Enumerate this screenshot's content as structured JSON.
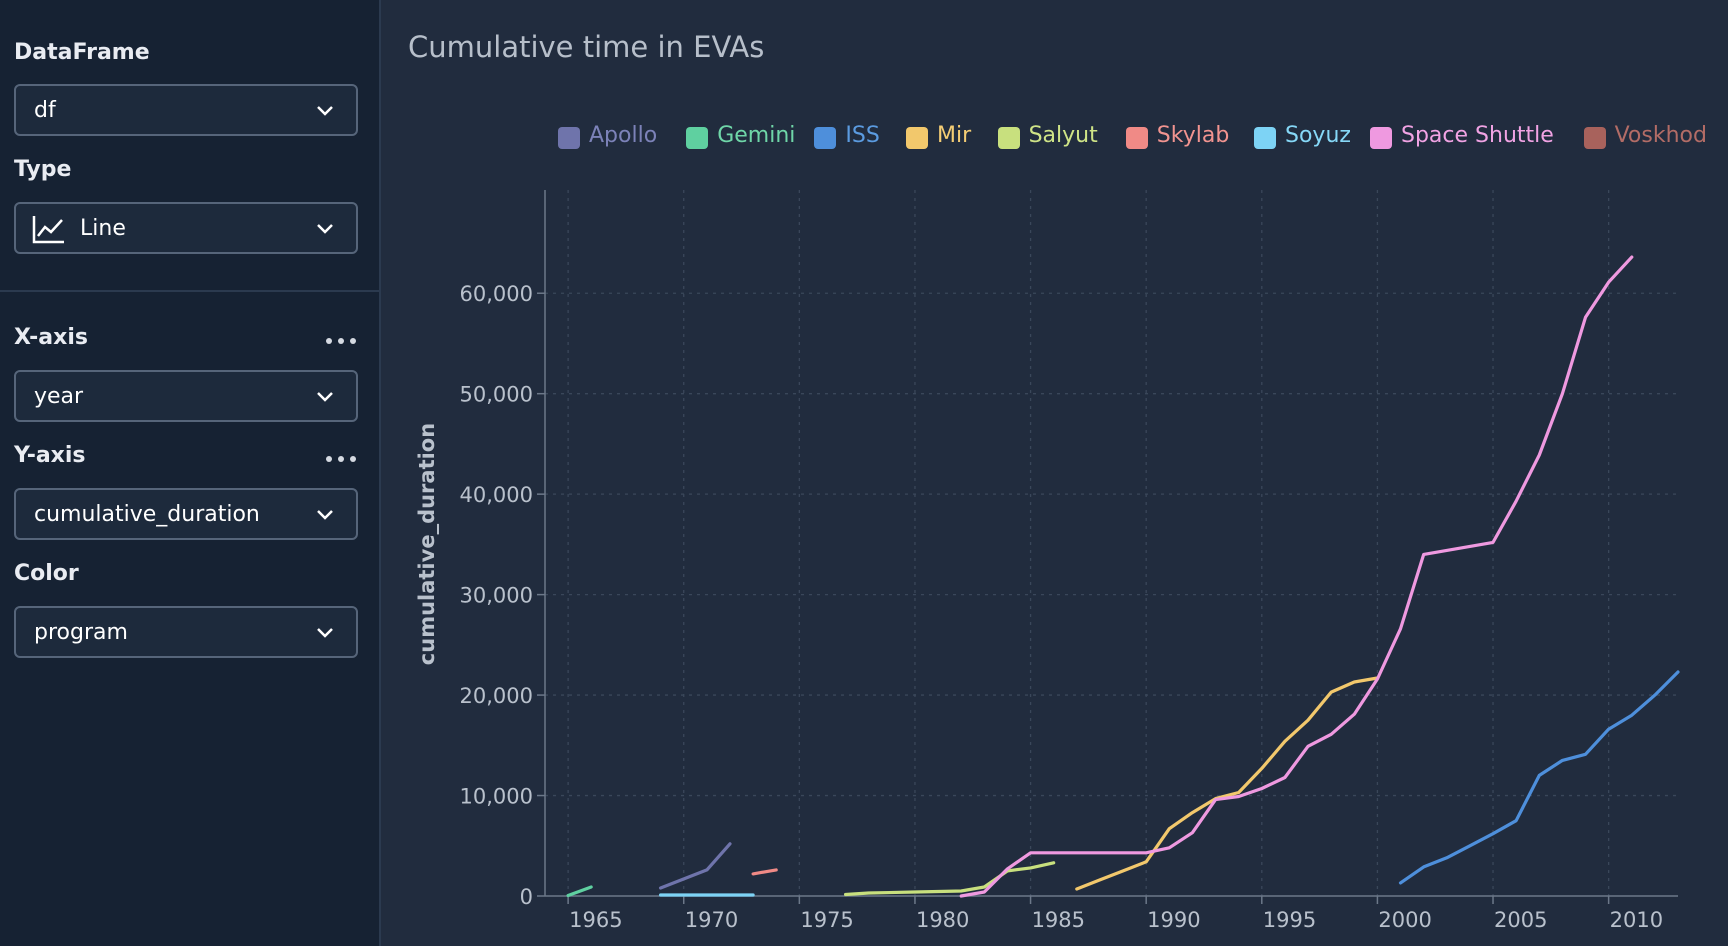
{
  "sidebar": {
    "dataframe": {
      "label": "DataFrame",
      "value": "df"
    },
    "type": {
      "label": "Type",
      "value": "Line",
      "icon": "line-chart-icon"
    },
    "xaxis": {
      "label": "X-axis",
      "value": "year"
    },
    "yaxis": {
      "label": "Y-axis",
      "value": "cumulative_duration"
    },
    "color": {
      "label": "Color",
      "value": "program"
    }
  },
  "chart_data": {
    "type": "line",
    "title": "Cumulative time in EVAs",
    "xlabel": "",
    "ylabel": "cumulative_duration",
    "xlim": [
      1964,
      2013
    ],
    "ylim": [
      0,
      65000
    ],
    "grid": true,
    "legend_position": "top-right",
    "x_ticks": [
      "1965",
      "1970",
      "1975",
      "1980",
      "1985",
      "1990",
      "1995",
      "2000",
      "2005",
      "2010"
    ],
    "y_ticks": [
      "0",
      "10,000",
      "20,000",
      "30,000",
      "40,000",
      "50,000",
      "60,000"
    ],
    "series": [
      {
        "name": "Apollo",
        "color": "#6f74ab",
        "x": [
          1969,
          1971,
          1972
        ],
        "y": [
          800,
          2600,
          5200
        ]
      },
      {
        "name": "Gemini",
        "color": "#5fd0a0",
        "x": [
          1965,
          1966
        ],
        "y": [
          50,
          900
        ]
      },
      {
        "name": "ISS",
        "color": "#4e8fdb",
        "x": [
          2001,
          2002,
          2003,
          2004,
          2005,
          2006,
          2007,
          2008,
          2009,
          2010,
          2011,
          2012,
          2013
        ],
        "y": [
          1300,
          2900,
          3800,
          5000,
          6200,
          7500,
          12000,
          13500,
          14100,
          16600,
          18000,
          20000,
          22300
        ]
      },
      {
        "name": "Mir",
        "color": "#f2c86c",
        "x": [
          1987,
          1988,
          1989,
          1990,
          1991,
          1992,
          1993,
          1994,
          1995,
          1996,
          1997,
          1998,
          1999,
          2000
        ],
        "y": [
          700,
          1600,
          2500,
          3400,
          6700,
          8300,
          9700,
          10300,
          12700,
          15400,
          17500,
          20300,
          21300,
          21700
        ]
      },
      {
        "name": "Salyut",
        "color": "#c8e07e",
        "x": [
          1977,
          1978,
          1980,
          1982,
          1983,
          1984,
          1985,
          1986
        ],
        "y": [
          150,
          300,
          400,
          500,
          900,
          2500,
          2800,
          3300
        ]
      },
      {
        "name": "Skylab",
        "color": "#f08a86",
        "x": [
          1973,
          1974
        ],
        "y": [
          2200,
          2600
        ]
      },
      {
        "name": "Soyuz",
        "color": "#7dd3f5",
        "x": [
          1969,
          1973
        ],
        "y": [
          100,
          100
        ]
      },
      {
        "name": "Space Shuttle",
        "color": "#ef99e0",
        "x": [
          1982,
          1983,
          1984,
          1985,
          1986,
          1987,
          1988,
          1989,
          1990,
          1991,
          1992,
          1993,
          1994,
          1995,
          1996,
          1997,
          1998,
          1999,
          2000,
          2001,
          2002,
          2003,
          2004,
          2005,
          2006,
          2007,
          2008,
          2009,
          2010,
          2011
        ],
        "y": [
          0,
          400,
          2700,
          4300,
          4300,
          4300,
          4300,
          4300,
          4300,
          4800,
          6300,
          9600,
          9900,
          10700,
          11800,
          14900,
          16100,
          18100,
          21600,
          26600,
          34000,
          34400,
          34800,
          35200,
          39300,
          43900,
          50000,
          57600,
          61100,
          63600
        ]
      },
      {
        "name": "Voskhod",
        "color": "#a8625c",
        "x": [],
        "y": []
      }
    ]
  }
}
